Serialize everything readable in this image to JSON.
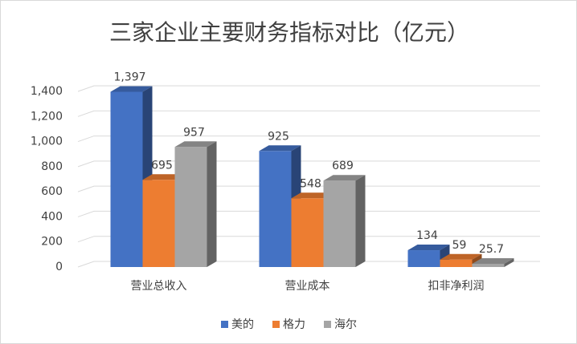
{
  "chart_data": {
    "type": "bar3d",
    "title": "三家企业主要财务指标对比（亿元）",
    "categories": [
      "营业总收入",
      "营业成本",
      "扣非净利润"
    ],
    "series": [
      {
        "name": "美的",
        "color": "#4472c4",
        "values": [
          1397,
          925,
          134
        ],
        "value_labels": [
          "1,397",
          "925",
          "134"
        ]
      },
      {
        "name": "格力",
        "color": "#ed7d31",
        "values": [
          695,
          548,
          59
        ]
      },
      {
        "name": "海尔",
        "color": "#a5a5a5",
        "values": [
          957,
          689,
          25.7
        ]
      }
    ],
    "ylim": [
      0,
      1400
    ],
    "yticks": [
      0,
      200,
      400,
      600,
      800,
      {
        "value": 1000,
        "label": "1,000"
      },
      {
        "value": 1200,
        "label": "1,200"
      },
      {
        "value": 1400,
        "label": "1,400"
      }
    ],
    "grid": true,
    "legend": "bottom"
  }
}
